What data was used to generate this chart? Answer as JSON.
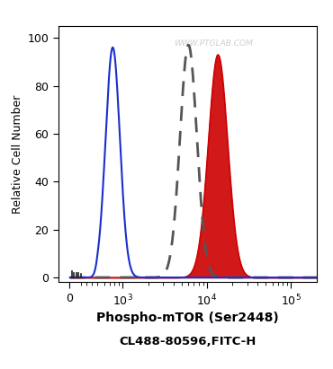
{
  "xlabel": "Phospho-mTOR (Ser2448)",
  "xlabel2": "CL488-80596,FITC-H",
  "ylabel": "Relative Cell Number",
  "ylim": [
    -2,
    105
  ],
  "yticks": [
    0,
    20,
    40,
    60,
    80,
    100
  ],
  "linthresh": 500,
  "blue_peak_log": 2.88,
  "blue_peak_height": 96,
  "blue_sigma_log": 0.085,
  "dashed_peak_log": 3.78,
  "dashed_peak_height": 97,
  "dashed_sigma_log": 0.1,
  "red_peak_log": 4.13,
  "red_peak_height": 93,
  "red_sigma_log": 0.115,
  "blue_color": "#1a2fcc",
  "dashed_color": "#555555",
  "red_color": "#cc0000",
  "red_fill_color": "#cc0000",
  "bg_color": "#ffffff",
  "watermark": "WWW.PTGLAB.COM",
  "watermark_color": "#c8c8c8",
  "fig_width": 3.7,
  "fig_height": 4.11,
  "dpi": 100,
  "xlim_left": -200,
  "xlim_right": 200000
}
